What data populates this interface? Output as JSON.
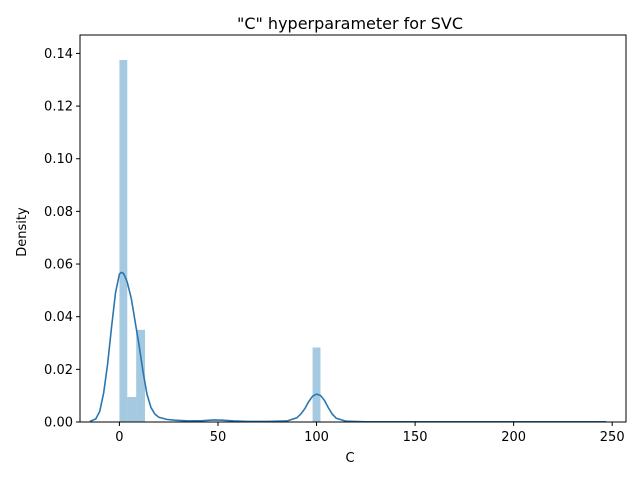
{
  "chart_data": {
    "type": "bar",
    "title": "\"C\" hyperparameter for SVC",
    "xlabel": "C",
    "ylabel": "Density",
    "xlim": [
      -20,
      257
    ],
    "ylim": [
      0,
      0.147
    ],
    "x_ticks": [
      0,
      50,
      100,
      150,
      200,
      250
    ],
    "x_tick_labels": [
      "0",
      "50",
      "100",
      "150",
      "200",
      "250"
    ],
    "y_ticks": [
      0,
      0.02,
      0.04,
      0.06,
      0.08,
      0.1,
      0.12,
      0.14
    ],
    "y_tick_labels": [
      "0.00",
      "0.02",
      "0.04",
      "0.06",
      "0.08",
      "0.10",
      "0.12",
      "0.14"
    ],
    "grid": false,
    "series": [
      {
        "kind": "histogram",
        "bins": [
          {
            "x0": 0,
            "x1": 4,
            "density": 0.1375
          },
          {
            "x0": 4,
            "x1": 8.5,
            "density": 0.0095
          },
          {
            "x0": 8.5,
            "x1": 13,
            "density": 0.035
          },
          {
            "x0": 98,
            "x1": 102,
            "density": 0.0283
          }
        ]
      },
      {
        "kind": "kde",
        "x": [
          -15,
          -12,
          -10,
          -8,
          -6,
          -4,
          -2,
          0,
          1,
          2,
          3,
          4,
          6,
          8,
          10,
          12,
          14,
          16,
          18,
          20,
          24,
          28,
          35,
          42,
          48,
          52,
          58,
          65,
          75,
          85,
          90,
          92,
          94,
          96,
          98,
          100,
          102,
          104,
          106,
          108,
          110,
          115,
          125,
          150,
          200,
          247
        ],
        "y": [
          0.0002,
          0.0012,
          0.004,
          0.011,
          0.022,
          0.036,
          0.049,
          0.0562,
          0.0568,
          0.0565,
          0.055,
          0.053,
          0.047,
          0.038,
          0.029,
          0.019,
          0.0105,
          0.0055,
          0.003,
          0.0018,
          0.001,
          0.0007,
          0.0004,
          0.0005,
          0.0008,
          0.0007,
          0.0004,
          0.0002,
          0.0002,
          0.0004,
          0.0016,
          0.003,
          0.005,
          0.0077,
          0.0098,
          0.0106,
          0.0101,
          0.0082,
          0.0054,
          0.003,
          0.0014,
          0.0003,
          0.0001,
          0.0001,
          0.0001,
          0.0001
        ]
      }
    ]
  },
  "colors": {
    "bar_fill": "#1f77b4",
    "bar_fill_opacity": "0.4",
    "kde_line": "#2a77b0"
  }
}
